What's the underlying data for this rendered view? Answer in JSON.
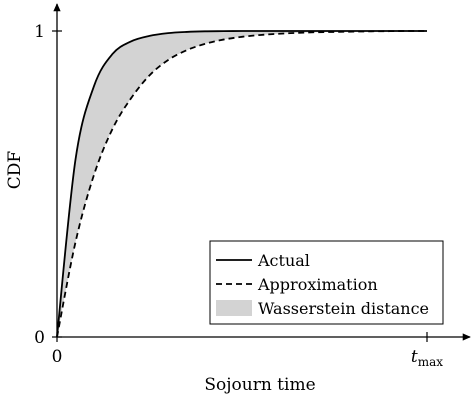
{
  "chart_data": {
    "type": "area",
    "title": "",
    "xlabel": "Sojourn time",
    "ylabel": "CDF",
    "xlim": [
      0,
      1
    ],
    "ylim": [
      0,
      1
    ],
    "x_ticks": [
      {
        "value": 0,
        "label": "0"
      },
      {
        "value": 1,
        "label": "t",
        "sub": "max"
      }
    ],
    "y_ticks": [
      {
        "value": 0,
        "label": "0"
      },
      {
        "value": 1,
        "label": "1"
      }
    ],
    "grid": false,
    "legend_position": "bottom-right",
    "x": [
      0,
      0.05,
      0.1,
      0.15,
      0.2,
      0.25,
      0.3,
      0.35,
      0.4,
      0.45,
      0.5,
      0.55,
      0.6,
      0.65,
      0.7,
      0.75,
      0.8,
      0.85,
      0.9,
      0.95,
      1.0
    ],
    "series": [
      {
        "name": "Actual",
        "style": "solid",
        "color": "#000000",
        "values": [
          0,
          0.58,
          0.82,
          0.925,
          0.966,
          0.984,
          0.993,
          0.997,
          0.999,
          0.9995,
          1.0,
          1.0,
          1.0,
          1.0,
          1.0,
          1.0,
          1.0,
          1.0,
          1.0,
          1.0,
          1.0
        ]
      },
      {
        "name": "Approximation",
        "style": "dashed",
        "color": "#000000",
        "values": [
          0,
          0.31,
          0.53,
          0.68,
          0.78,
          0.855,
          0.905,
          0.937,
          0.958,
          0.972,
          0.981,
          0.987,
          0.991,
          0.994,
          0.996,
          0.997,
          0.998,
          0.999,
          0.9995,
          1.0,
          1.0
        ]
      }
    ],
    "fill_between": {
      "name": "Wasserstein distance",
      "color": "#d3d3d3",
      "between": [
        "Actual",
        "Approximation"
      ]
    }
  }
}
